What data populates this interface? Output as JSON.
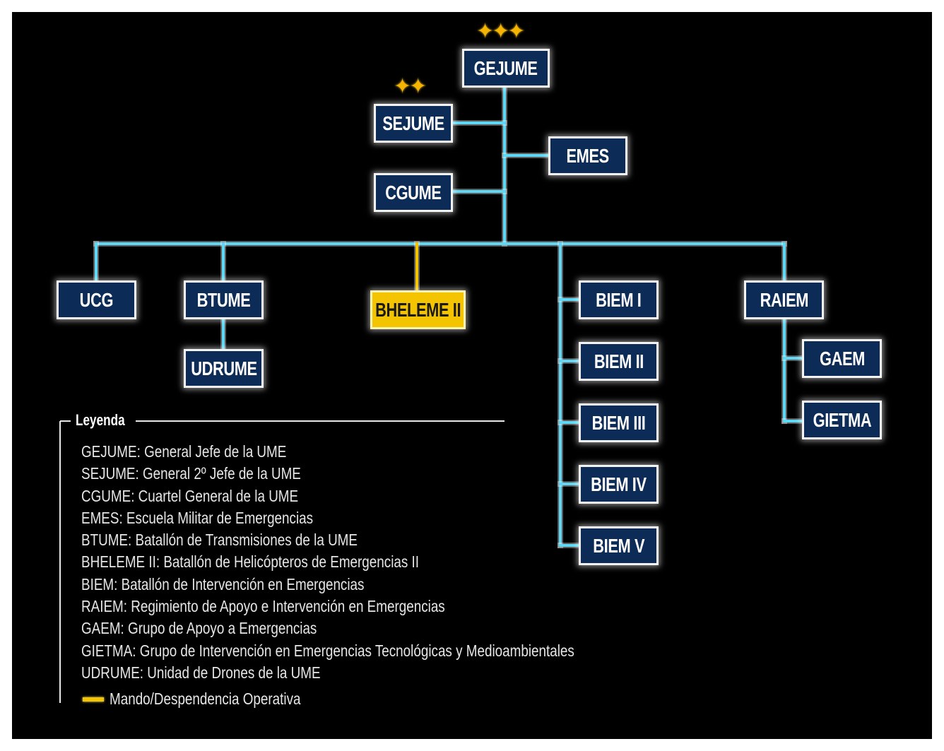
{
  "colors": {
    "background": "#000000",
    "box_fill": "#0d2b57",
    "connector": "#5fd8f5",
    "operational": "#f5c400",
    "star": "#f5b400"
  },
  "nodes": {
    "gejume": {
      "label": "GEJUME",
      "stars": 3,
      "icon": "star-icon"
    },
    "sejume": {
      "label": "SEJUME",
      "stars": 2,
      "icon": "star-icon"
    },
    "emes": {
      "label": "EMES"
    },
    "cgume": {
      "label": "CGUME"
    },
    "ucg": {
      "label": "UCG"
    },
    "btume": {
      "label": "BTUME"
    },
    "udrume": {
      "label": "UDRUME"
    },
    "bheleme": {
      "label": "BHELEME II",
      "operational": true
    },
    "biem1": {
      "label": "BIEM I"
    },
    "biem2": {
      "label": "BIEM II"
    },
    "biem3": {
      "label": "BIEM III"
    },
    "biem4": {
      "label": "BIEM IV"
    },
    "biem5": {
      "label": "BIEM V"
    },
    "raiem": {
      "label": "RAIEM"
    },
    "gaem": {
      "label": "GAEM"
    },
    "gietma": {
      "label": "GIETMA"
    }
  },
  "legend": {
    "title": "Leyenda",
    "items": [
      "GEJUME: General Jefe de la UME",
      "SEJUME: General 2º Jefe de la UME",
      "CGUME: Cuartel General de la UME",
      "EMES: Escuela Militar de Emergencias",
      "BTUME: Batallón de Transmisiones de la UME",
      "BHELEME II: Batallón de Helicópteros de Emergencias II",
      "BIEM: Batallón de Intervención en Emergencias",
      "RAIEM: Regimiento de Apoyo e Intervención en Emergencias",
      "GAEM: Grupo de Apoyo a Emergencias",
      "GIETMA: Grupo de Intervención en Emergencias Tecnológicas y Medioambientales",
      "UDRUME: Unidad de Drones de la UME"
    ],
    "operational_label": "Mando/Despendencia Operativa"
  }
}
